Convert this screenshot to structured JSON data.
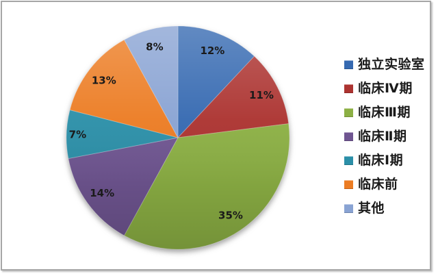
{
  "page": {
    "background": "#FFFFFF",
    "frame_border_color": "#A6A6A6"
  },
  "chart_data": {
    "type": "pie",
    "start_angle_deg": 0,
    "direction": "clockwise",
    "legend_position": "right",
    "data_label_color": "#1A1A1A",
    "legend_text_color": "#1A1A1A",
    "slices": [
      {
        "label": "独立实验室",
        "value_pct": 12,
        "data_label": "12%",
        "color": "#3569B1"
      },
      {
        "label": "临床Ⅳ期",
        "value_pct": 11,
        "data_label": "11%",
        "color": "#AC3330"
      },
      {
        "label": "临床Ⅲ期",
        "value_pct": 35,
        "data_label": "35%",
        "color": "#8CB044"
      },
      {
        "label": "临床Ⅱ期",
        "value_pct": 14,
        "data_label": "14%",
        "color": "#6F5591"
      },
      {
        "label": "临床Ⅰ期",
        "value_pct": 7,
        "data_label": "7%",
        "color": "#2B8FA8"
      },
      {
        "label": "临床前",
        "value_pct": 13,
        "data_label": "13%",
        "color": "#EC7C23"
      },
      {
        "label": "其他",
        "value_pct": 8,
        "data_label": "8%",
        "color": "#89A3D3"
      }
    ]
  }
}
